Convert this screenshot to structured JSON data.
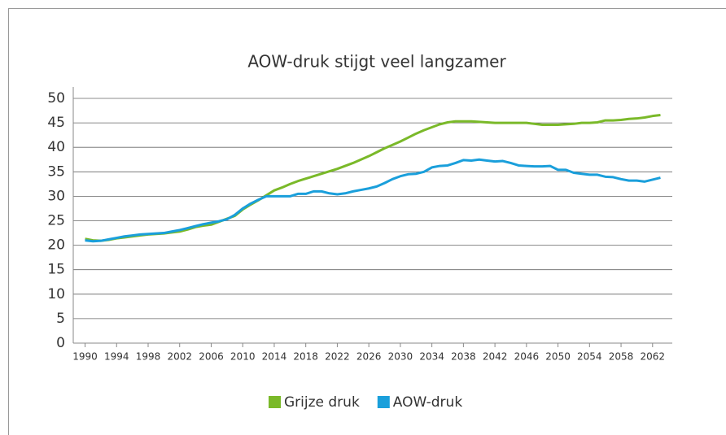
{
  "chart_data": {
    "type": "line",
    "title": "AOW-druk stijgt veel langzamer",
    "x": [
      1990,
      1991,
      1992,
      1993,
      1994,
      1995,
      1996,
      1997,
      1998,
      1999,
      2000,
      2001,
      2002,
      2003,
      2004,
      2005,
      2006,
      2007,
      2008,
      2009,
      2010,
      2011,
      2012,
      2013,
      2014,
      2015,
      2016,
      2017,
      2018,
      2019,
      2020,
      2021,
      2022,
      2023,
      2024,
      2025,
      2026,
      2027,
      2028,
      2029,
      2030,
      2031,
      2032,
      2033,
      2034,
      2035,
      2036,
      2037,
      2038,
      2039,
      2040,
      2041,
      2042,
      2043,
      2044,
      2045,
      2046,
      2047,
      2048,
      2049,
      2050,
      2051,
      2052,
      2053,
      2054,
      2055,
      2056,
      2057,
      2058,
      2059,
      2060,
      2061,
      2062,
      2063
    ],
    "series": [
      {
        "name": "Grijze druk",
        "color": "#7ab929",
        "values": [
          21.3,
          21,
          20.9,
          21.1,
          21.4,
          21.6,
          21.8,
          22,
          22.2,
          22.3,
          22.4,
          22.6,
          22.8,
          23.2,
          23.7,
          24,
          24.2,
          24.8,
          25.4,
          26,
          27.3,
          28.3,
          29.2,
          30.2,
          31.2,
          31.8,
          32.5,
          33.1,
          33.6,
          34.1,
          34.6,
          35.1,
          35.6,
          36.2,
          36.8,
          37.5,
          38.2,
          39,
          39.8,
          40.5,
          41.2,
          42,
          42.8,
          43.5,
          44.1,
          44.7,
          45.1,
          45.3,
          45.3,
          45.3,
          45.2,
          45.1,
          45,
          45,
          45,
          45,
          45,
          44.8,
          44.6,
          44.6,
          44.6,
          44.7,
          44.8,
          45,
          45,
          45.1,
          45.5,
          45.5,
          45.6,
          45.8,
          45.9,
          46.1,
          46.4,
          46.6
        ]
      },
      {
        "name": "AOW-druk",
        "color": "#1a9fdb",
        "values": [
          21,
          20.8,
          20.9,
          21.2,
          21.5,
          21.8,
          22,
          22.2,
          22.3,
          22.4,
          22.5,
          22.8,
          23.1,
          23.5,
          23.9,
          24.3,
          24.6,
          24.9,
          25.3,
          26.2,
          27.5,
          28.5,
          29.3,
          30,
          30,
          30,
          30,
          30.5,
          30.5,
          31,
          31,
          30.6,
          30.4,
          30.6,
          31,
          31.3,
          31.6,
          32,
          32.7,
          33.5,
          34.1,
          34.5,
          34.6,
          35,
          35.9,
          36.2,
          36.3,
          36.8,
          37.4,
          37.3,
          37.5,
          37.3,
          37.1,
          37.2,
          36.8,
          36.3,
          36.2,
          36.1,
          36.1,
          36.2,
          35.4,
          35.4,
          34.8,
          34.6,
          34.4,
          34.4,
          34,
          33.9,
          33.5,
          33.2,
          33.2,
          33,
          33.4,
          33.8
        ]
      }
    ],
    "xlim": [
      1988.5,
      2064.5
    ],
    "xticks": [
      1990,
      1994,
      1998,
      2002,
      2006,
      2010,
      2014,
      2018,
      2022,
      2026,
      2030,
      2034,
      2038,
      2042,
      2046,
      2050,
      2054,
      2058,
      2062
    ],
    "ylim": [
      0,
      50
    ],
    "yticks": [
      0,
      5,
      10,
      15,
      20,
      25,
      30,
      35,
      40,
      45,
      50
    ],
    "grid": true,
    "legend": "bottom"
  }
}
